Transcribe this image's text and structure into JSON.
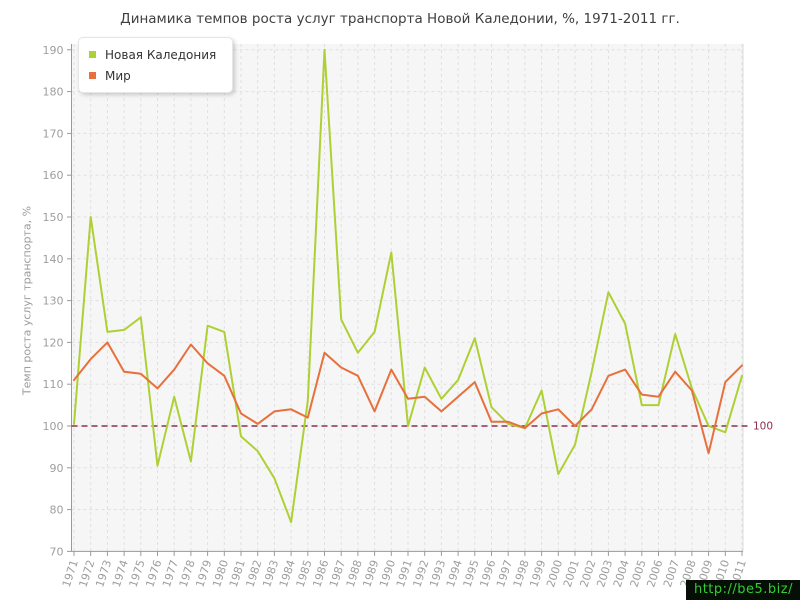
{
  "watermark": {
    "text": "http://be5.biz/",
    "text_color": "#35cc35",
    "background_color": "#050f05"
  },
  "chart_data": {
    "type": "line",
    "title": "Динамика темпов роста услуг транспорта Новой Каледонии, %, 1971-2011 гг.",
    "ylabel": "Темп роста услуг транспорта, %",
    "xlabel": "",
    "ylim": [
      70,
      190
    ],
    "ytick_step": 10,
    "grid": true,
    "legend_position": "top-left",
    "categories": [
      1971,
      1972,
      1973,
      1974,
      1975,
      1976,
      1977,
      1978,
      1979,
      1980,
      1981,
      1982,
      1983,
      1984,
      1985,
      1986,
      1987,
      1988,
      1989,
      1990,
      1991,
      1992,
      1993,
      1994,
      1995,
      1996,
      1997,
      1998,
      1999,
      2000,
      2001,
      2002,
      2003,
      2004,
      2005,
      2006,
      2007,
      2008,
      2009,
      2010,
      2011
    ],
    "series": [
      {
        "name": "Новая Каледония",
        "color": "#aed035",
        "values": [
          100.5,
          150,
          122.5,
          123,
          126,
          90.5,
          107,
          91.5,
          124,
          122.5,
          97.5,
          94,
          87.5,
          77,
          106,
          190,
          125.5,
          117.5,
          122.5,
          141.5,
          100,
          114,
          106.5,
          111,
          121,
          104.5,
          100.5,
          99.5,
          108.5,
          88.5,
          95.5,
          113,
          132,
          124.5,
          105,
          105,
          122,
          109,
          100,
          98.5,
          112
        ]
      },
      {
        "name": "Мир",
        "color": "#e6713c",
        "values": [
          111,
          116,
          120,
          113,
          112.5,
          109,
          113.5,
          119.5,
          115,
          112,
          103,
          100.5,
          103.5,
          104,
          102,
          117.5,
          114,
          112,
          103.5,
          113.5,
          106.5,
          107,
          103.5,
          107,
          110.5,
          101,
          101,
          99.5,
          103,
          104,
          100,
          104,
          112,
          113.5,
          107.5,
          107,
          113,
          108.5,
          93.5,
          110.5,
          114.5
        ]
      }
    ],
    "reference_line": {
      "value": 100,
      "label": "100",
      "color": "#8b3150"
    }
  }
}
